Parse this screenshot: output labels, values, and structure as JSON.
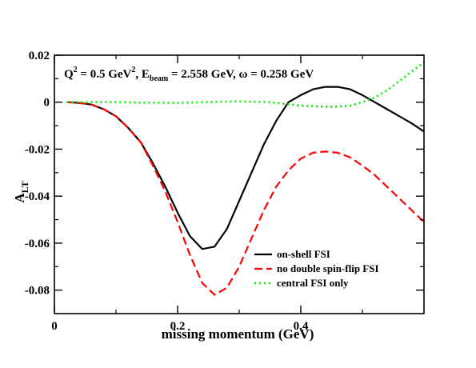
{
  "chart_data": {
    "type": "line",
    "xlabel": "missing momentum (GeV)",
    "ylabel": {
      "main": "A",
      "sub": "LT"
    },
    "annotation": {
      "q2": "Q",
      "q2_sup": "2",
      "q2_value": " = 0.5 GeV",
      "q2_unit_sup": "2",
      "sep1": ", E",
      "ebeam_sub": "beam",
      "ebeam_value": " = 2.558 GeV, ω = 0.258 GeV"
    },
    "xlim": [
      0,
      0.6
    ],
    "ylim": [
      -0.09,
      0.02
    ],
    "xticks": [
      0,
      0.2,
      0.4
    ],
    "xtick_labels": [
      "0",
      "0.2",
      "0.4"
    ],
    "yticks": [
      0.02,
      0,
      -0.02,
      -0.04,
      -0.06,
      -0.08
    ],
    "ytick_labels": [
      "0.02",
      "0",
      "-0.02",
      "-0.04",
      "-0.06",
      "-0.08"
    ],
    "legend_position": "bottom-right",
    "series": [
      {
        "name": "on-shell FSI",
        "color": "#000000",
        "dash": "solid",
        "x": [
          0.02,
          0.04,
          0.06,
          0.08,
          0.1,
          0.12,
          0.14,
          0.16,
          0.18,
          0.2,
          0.22,
          0.24,
          0.26,
          0.28,
          0.3,
          0.32,
          0.34,
          0.36,
          0.38,
          0.4,
          0.42,
          0.44,
          0.46,
          0.48,
          0.5,
          0.52,
          0.54,
          0.56,
          0.58,
          0.6
        ],
        "y": [
          0.0,
          -0.0003,
          -0.001,
          -0.003,
          -0.006,
          -0.011,
          -0.017,
          -0.026,
          -0.036,
          -0.047,
          -0.057,
          -0.0625,
          -0.0615,
          -0.054,
          -0.042,
          -0.03,
          -0.018,
          -0.008,
          0.0,
          0.003,
          0.0055,
          0.0065,
          0.0065,
          0.0055,
          0.003,
          0.0,
          -0.003,
          -0.006,
          -0.009,
          -0.0125
        ]
      },
      {
        "name": "no double spin-flip FSI",
        "color": "#ff0000",
        "dash": "dashed",
        "x": [
          0.02,
          0.04,
          0.06,
          0.08,
          0.1,
          0.12,
          0.14,
          0.16,
          0.18,
          0.2,
          0.22,
          0.24,
          0.26,
          0.28,
          0.3,
          0.32,
          0.34,
          0.36,
          0.38,
          0.4,
          0.42,
          0.44,
          0.46,
          0.48,
          0.5,
          0.52,
          0.54,
          0.56,
          0.58,
          0.6
        ],
        "y": [
          0.0,
          -0.0003,
          -0.001,
          -0.003,
          -0.006,
          -0.011,
          -0.017,
          -0.027,
          -0.038,
          -0.051,
          -0.065,
          -0.077,
          -0.082,
          -0.079,
          -0.07,
          -0.058,
          -0.046,
          -0.036,
          -0.029,
          -0.024,
          -0.0215,
          -0.021,
          -0.0215,
          -0.0235,
          -0.027,
          -0.031,
          -0.036,
          -0.041,
          -0.046,
          -0.051
        ]
      },
      {
        "name": "central FSI only",
        "color": "#00ee00",
        "dash": "dotted",
        "x": [
          0.02,
          0.05,
          0.1,
          0.15,
          0.2,
          0.25,
          0.3,
          0.35,
          0.4,
          0.45,
          0.48,
          0.5,
          0.52,
          0.54,
          0.56,
          0.58,
          0.6
        ],
        "y": [
          0.0,
          0.0,
          0.0,
          -0.0002,
          -0.0003,
          0.0,
          0.0003,
          0.0,
          -0.0015,
          -0.002,
          -0.0015,
          0.0,
          0.002,
          0.005,
          0.009,
          0.013,
          0.017
        ]
      }
    ]
  }
}
